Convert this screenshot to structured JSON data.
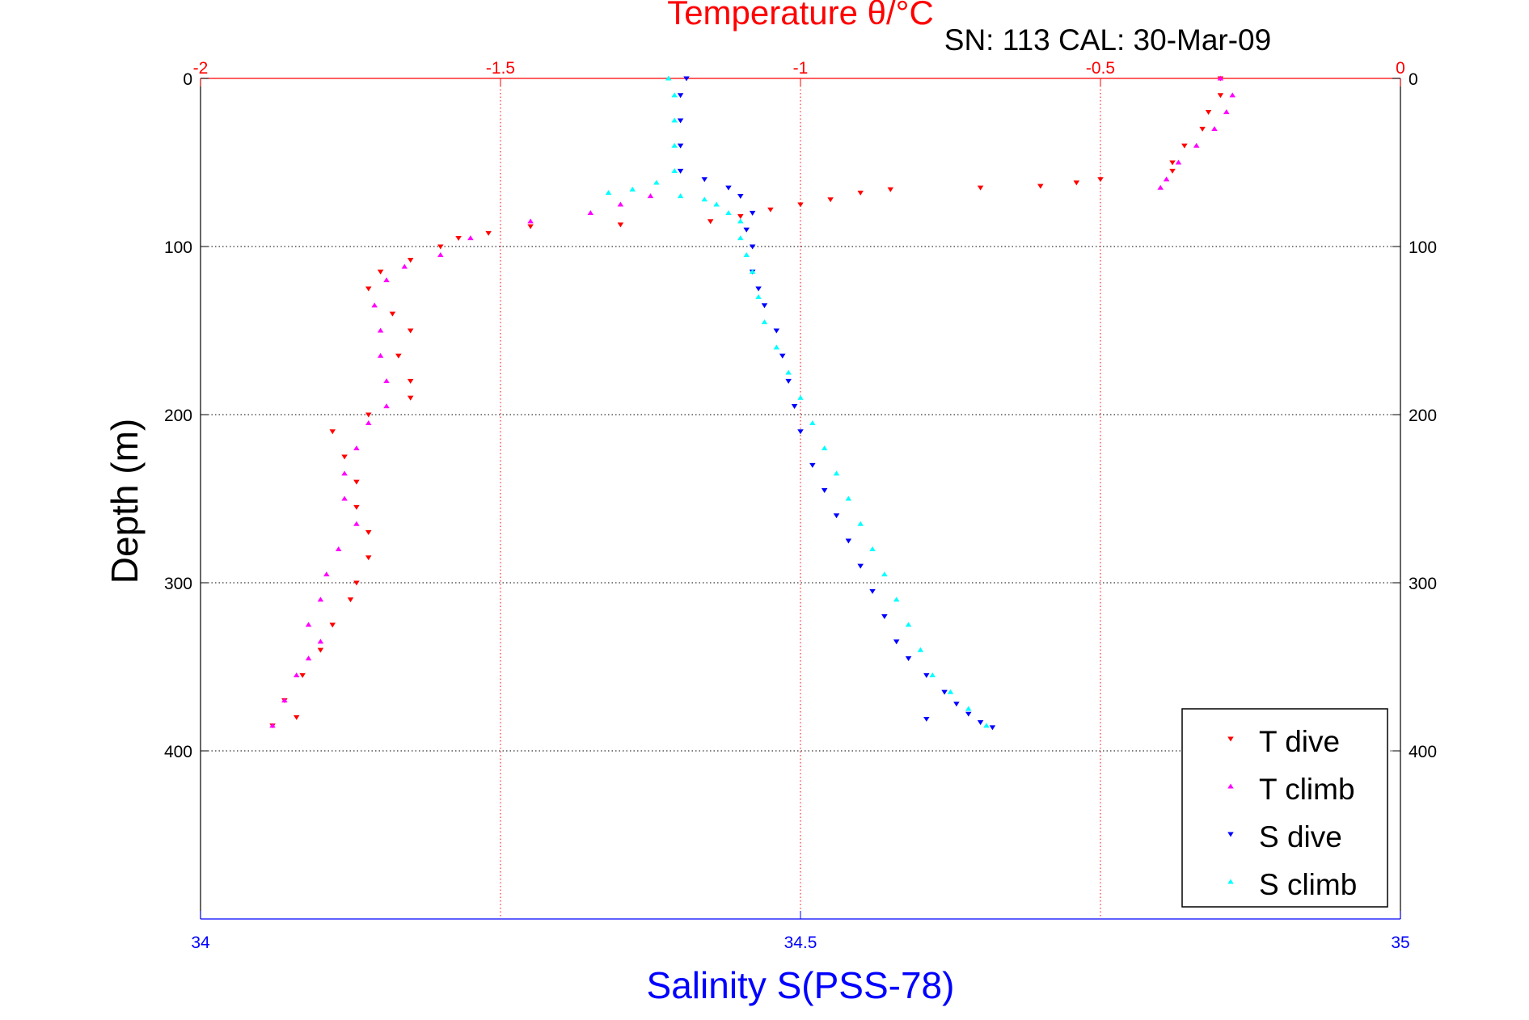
{
  "chart_data": {
    "type": "scatter",
    "title": "Temperature θ/°C",
    "subtitle": "SN: 113  CAL: 30-Mar-09",
    "xlabel_bottom": "Salinity S(PSS-78)",
    "xlabel_top": "",
    "ylabel": "Depth (m)",
    "colors": {
      "temperature_axis": "#ff0000",
      "salinity_axis": "#0000ff",
      "axes": "#000000"
    },
    "x_bottom": {
      "lim": [
        34,
        35
      ],
      "ticks": [
        34,
        34.5,
        35
      ],
      "tick_labels": [
        "34",
        "34.5",
        "35"
      ]
    },
    "x_top": {
      "lim": [
        -2,
        0
      ],
      "ticks": [
        -2,
        -1.5,
        -1,
        -0.5,
        0
      ],
      "tick_labels": [
        "-2",
        "-1.5",
        "-1",
        "-0.5",
        "0"
      ]
    },
    "y": {
      "lim": [
        0,
        500
      ],
      "reversed": true,
      "ticks": [
        0,
        100,
        200,
        300,
        400
      ],
      "tick_labels": [
        "0",
        "100",
        "200",
        "300",
        "400"
      ]
    },
    "grid": true,
    "legend_position": "bottom-right",
    "legend": [
      "T dive",
      "T climb",
      "S dive",
      "S climb"
    ],
    "series": [
      {
        "name": "T dive",
        "axis": "top",
        "color": "#ff0000",
        "marker": "triangle-down",
        "points": [
          [
            -0.3,
            0
          ],
          [
            -0.3,
            10
          ],
          [
            -0.32,
            20
          ],
          [
            -0.33,
            30
          ],
          [
            -0.36,
            40
          ],
          [
            -0.38,
            50
          ],
          [
            -0.38,
            55
          ],
          [
            -0.5,
            60
          ],
          [
            -0.54,
            62
          ],
          [
            -0.6,
            64
          ],
          [
            -0.7,
            65
          ],
          [
            -0.85,
            66
          ],
          [
            -0.9,
            68
          ],
          [
            -0.95,
            72
          ],
          [
            -1.0,
            75
          ],
          [
            -1.05,
            78
          ],
          [
            -1.1,
            82
          ],
          [
            -1.15,
            85
          ],
          [
            -1.3,
            87
          ],
          [
            -1.45,
            88
          ],
          [
            -1.52,
            92
          ],
          [
            -1.57,
            95
          ],
          [
            -1.6,
            100
          ],
          [
            -1.65,
            108
          ],
          [
            -1.7,
            115
          ],
          [
            -1.72,
            125
          ],
          [
            -1.68,
            140
          ],
          [
            -1.65,
            150
          ],
          [
            -1.67,
            165
          ],
          [
            -1.65,
            180
          ],
          [
            -1.65,
            190
          ],
          [
            -1.72,
            200
          ],
          [
            -1.78,
            210
          ],
          [
            -1.76,
            225
          ],
          [
            -1.74,
            240
          ],
          [
            -1.74,
            255
          ],
          [
            -1.72,
            270
          ],
          [
            -1.72,
            285
          ],
          [
            -1.74,
            300
          ],
          [
            -1.75,
            310
          ],
          [
            -1.78,
            325
          ],
          [
            -1.8,
            340
          ],
          [
            -1.83,
            355
          ],
          [
            -1.86,
            370
          ],
          [
            -1.84,
            380
          ],
          [
            -1.88,
            385
          ]
        ]
      },
      {
        "name": "T climb",
        "axis": "top",
        "color": "#ff00ff",
        "marker": "triangle-up",
        "points": [
          [
            -0.3,
            0
          ],
          [
            -0.28,
            10
          ],
          [
            -0.29,
            20
          ],
          [
            -0.31,
            30
          ],
          [
            -0.34,
            40
          ],
          [
            -0.37,
            50
          ],
          [
            -0.39,
            60
          ],
          [
            -0.4,
            65
          ],
          [
            -1.25,
            70
          ],
          [
            -1.3,
            75
          ],
          [
            -1.35,
            80
          ],
          [
            -1.45,
            85
          ],
          [
            -1.55,
            95
          ],
          [
            -1.6,
            105
          ],
          [
            -1.66,
            112
          ],
          [
            -1.69,
            120
          ],
          [
            -1.71,
            135
          ],
          [
            -1.7,
            150
          ],
          [
            -1.7,
            165
          ],
          [
            -1.69,
            180
          ],
          [
            -1.69,
            195
          ],
          [
            -1.72,
            205
          ],
          [
            -1.74,
            220
          ],
          [
            -1.76,
            235
          ],
          [
            -1.76,
            250
          ],
          [
            -1.74,
            265
          ],
          [
            -1.77,
            280
          ],
          [
            -1.79,
            295
          ],
          [
            -1.8,
            310
          ],
          [
            -1.82,
            325
          ],
          [
            -1.8,
            335
          ],
          [
            -1.82,
            345
          ],
          [
            -1.84,
            355
          ],
          [
            -1.86,
            370
          ],
          [
            -1.88,
            385
          ]
        ]
      },
      {
        "name": "S dive",
        "axis": "bottom",
        "color": "#0000ff",
        "marker": "triangle-down",
        "points": [
          [
            34.405,
            0
          ],
          [
            34.4,
            10
          ],
          [
            34.4,
            25
          ],
          [
            34.4,
            40
          ],
          [
            34.4,
            55
          ],
          [
            34.42,
            60
          ],
          [
            34.44,
            65
          ],
          [
            34.45,
            70
          ],
          [
            34.46,
            80
          ],
          [
            34.455,
            90
          ],
          [
            34.46,
            100
          ],
          [
            34.46,
            115
          ],
          [
            34.465,
            125
          ],
          [
            34.47,
            135
          ],
          [
            34.48,
            150
          ],
          [
            34.485,
            165
          ],
          [
            34.49,
            180
          ],
          [
            34.495,
            195
          ],
          [
            34.5,
            210
          ],
          [
            34.51,
            230
          ],
          [
            34.52,
            245
          ],
          [
            34.53,
            260
          ],
          [
            34.54,
            275
          ],
          [
            34.55,
            290
          ],
          [
            34.56,
            305
          ],
          [
            34.57,
            320
          ],
          [
            34.58,
            335
          ],
          [
            34.59,
            345
          ],
          [
            34.605,
            355
          ],
          [
            34.62,
            365
          ],
          [
            34.63,
            372
          ],
          [
            34.64,
            378
          ],
          [
            34.65,
            383
          ],
          [
            34.66,
            386
          ],
          [
            34.605,
            381
          ]
        ]
      },
      {
        "name": "S climb",
        "axis": "bottom",
        "color": "#00ffff",
        "marker": "triangle-up",
        "points": [
          [
            34.39,
            0
          ],
          [
            34.395,
            10
          ],
          [
            34.395,
            25
          ],
          [
            34.395,
            40
          ],
          [
            34.395,
            55
          ],
          [
            34.38,
            62
          ],
          [
            34.36,
            66
          ],
          [
            34.34,
            68
          ],
          [
            34.4,
            70
          ],
          [
            34.42,
            72
          ],
          [
            34.43,
            75
          ],
          [
            34.44,
            80
          ],
          [
            34.45,
            85
          ],
          [
            34.45,
            95
          ],
          [
            34.455,
            105
          ],
          [
            34.46,
            115
          ],
          [
            34.465,
            130
          ],
          [
            34.47,
            145
          ],
          [
            34.48,
            160
          ],
          [
            34.49,
            175
          ],
          [
            34.5,
            190
          ],
          [
            34.51,
            205
          ],
          [
            34.52,
            220
          ],
          [
            34.53,
            235
          ],
          [
            34.54,
            250
          ],
          [
            34.55,
            265
          ],
          [
            34.56,
            280
          ],
          [
            34.57,
            295
          ],
          [
            34.58,
            310
          ],
          [
            34.59,
            325
          ],
          [
            34.6,
            340
          ],
          [
            34.61,
            355
          ],
          [
            34.625,
            365
          ],
          [
            34.64,
            375
          ],
          [
            34.655,
            385
          ]
        ]
      }
    ]
  }
}
